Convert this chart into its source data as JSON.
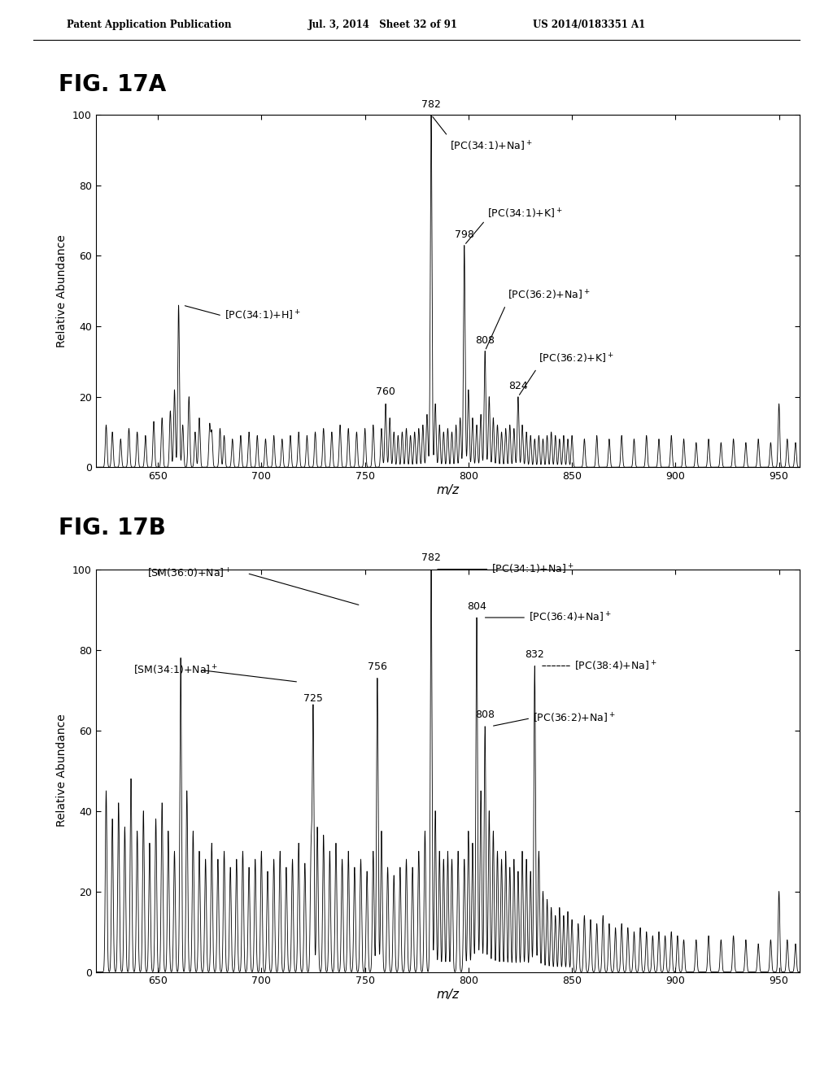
{
  "header_left": "Patent Application Publication",
  "header_mid": "Jul. 3, 2014   Sheet 32 of 91",
  "header_right": "US 2014/0183351 A1",
  "fig_a_label": "FIG. 17A",
  "fig_b_label": "FIG. 17B",
  "xlabel": "m/z",
  "ylabel": "Relative Abundance",
  "xlim": [
    620,
    960
  ],
  "ylim": [
    0,
    100
  ],
  "xticks": [
    650,
    700,
    750,
    800,
    850,
    900,
    950
  ],
  "yticks": [
    0,
    20,
    40,
    60,
    80,
    100
  ],
  "background_color": "#ffffff",
  "line_color": "#000000",
  "fig_a_peaks": [
    [
      660,
      46
    ],
    [
      665,
      20
    ],
    [
      670,
      14
    ],
    [
      675,
      12
    ],
    [
      680,
      11
    ],
    [
      625,
      12
    ],
    [
      628,
      10
    ],
    [
      632,
      8
    ],
    [
      636,
      11
    ],
    [
      640,
      10
    ],
    [
      644,
      9
    ],
    [
      648,
      13
    ],
    [
      652,
      14
    ],
    [
      656,
      16
    ],
    [
      658,
      22
    ],
    [
      662,
      12
    ],
    [
      668,
      10
    ],
    [
      676,
      10
    ],
    [
      682,
      9
    ],
    [
      686,
      8
    ],
    [
      690,
      9
    ],
    [
      694,
      10
    ],
    [
      698,
      9
    ],
    [
      702,
      8
    ],
    [
      706,
      9
    ],
    [
      710,
      8
    ],
    [
      714,
      9
    ],
    [
      718,
      10
    ],
    [
      722,
      9
    ],
    [
      726,
      10
    ],
    [
      730,
      11
    ],
    [
      734,
      10
    ],
    [
      738,
      12
    ],
    [
      742,
      11
    ],
    [
      746,
      10
    ],
    [
      750,
      11
    ],
    [
      754,
      12
    ],
    [
      758,
      11
    ],
    [
      760,
      18
    ],
    [
      762,
      14
    ],
    [
      764,
      10
    ],
    [
      766,
      9
    ],
    [
      768,
      10
    ],
    [
      770,
      11
    ],
    [
      772,
      9
    ],
    [
      774,
      10
    ],
    [
      776,
      11
    ],
    [
      778,
      12
    ],
    [
      780,
      15
    ],
    [
      782,
      100
    ],
    [
      784,
      18
    ],
    [
      786,
      12
    ],
    [
      788,
      10
    ],
    [
      790,
      11
    ],
    [
      792,
      10
    ],
    [
      794,
      12
    ],
    [
      796,
      14
    ],
    [
      798,
      63
    ],
    [
      800,
      22
    ],
    [
      802,
      14
    ],
    [
      804,
      12
    ],
    [
      806,
      15
    ],
    [
      808,
      33
    ],
    [
      810,
      20
    ],
    [
      812,
      14
    ],
    [
      814,
      12
    ],
    [
      816,
      10
    ],
    [
      818,
      11
    ],
    [
      820,
      12
    ],
    [
      822,
      11
    ],
    [
      824,
      20
    ],
    [
      826,
      12
    ],
    [
      828,
      10
    ],
    [
      830,
      9
    ],
    [
      832,
      8
    ],
    [
      834,
      9
    ],
    [
      836,
      8
    ],
    [
      838,
      9
    ],
    [
      840,
      10
    ],
    [
      842,
      9
    ],
    [
      844,
      8
    ],
    [
      846,
      9
    ],
    [
      848,
      8
    ],
    [
      850,
      9
    ],
    [
      856,
      8
    ],
    [
      862,
      9
    ],
    [
      868,
      8
    ],
    [
      874,
      9
    ],
    [
      880,
      8
    ],
    [
      886,
      9
    ],
    [
      892,
      8
    ],
    [
      898,
      9
    ],
    [
      904,
      8
    ],
    [
      910,
      7
    ],
    [
      916,
      8
    ],
    [
      922,
      7
    ],
    [
      928,
      8
    ],
    [
      934,
      7
    ],
    [
      940,
      8
    ],
    [
      946,
      7
    ],
    [
      950,
      18
    ],
    [
      954,
      8
    ],
    [
      958,
      7
    ]
  ],
  "fig_b_peaks": [
    [
      625,
      45
    ],
    [
      628,
      38
    ],
    [
      631,
      42
    ],
    [
      634,
      36
    ],
    [
      637,
      48
    ],
    [
      640,
      35
    ],
    [
      643,
      40
    ],
    [
      646,
      32
    ],
    [
      649,
      38
    ],
    [
      652,
      42
    ],
    [
      655,
      35
    ],
    [
      658,
      30
    ],
    [
      661,
      78
    ],
    [
      664,
      45
    ],
    [
      667,
      35
    ],
    [
      670,
      30
    ],
    [
      673,
      28
    ],
    [
      676,
      32
    ],
    [
      679,
      28
    ],
    [
      682,
      30
    ],
    [
      685,
      26
    ],
    [
      688,
      28
    ],
    [
      691,
      30
    ],
    [
      694,
      26
    ],
    [
      697,
      28
    ],
    [
      700,
      30
    ],
    [
      703,
      25
    ],
    [
      706,
      28
    ],
    [
      709,
      30
    ],
    [
      712,
      26
    ],
    [
      715,
      28
    ],
    [
      718,
      32
    ],
    [
      721,
      27
    ],
    [
      724,
      30
    ],
    [
      725,
      65
    ],
    [
      727,
      36
    ],
    [
      730,
      34
    ],
    [
      733,
      30
    ],
    [
      736,
      32
    ],
    [
      739,
      28
    ],
    [
      742,
      30
    ],
    [
      745,
      26
    ],
    [
      748,
      28
    ],
    [
      751,
      25
    ],
    [
      754,
      30
    ],
    [
      756,
      73
    ],
    [
      758,
      35
    ],
    [
      761,
      26
    ],
    [
      764,
      24
    ],
    [
      767,
      26
    ],
    [
      770,
      28
    ],
    [
      773,
      26
    ],
    [
      776,
      30
    ],
    [
      779,
      35
    ],
    [
      782,
      100
    ],
    [
      784,
      40
    ],
    [
      786,
      30
    ],
    [
      788,
      28
    ],
    [
      790,
      30
    ],
    [
      792,
      28
    ],
    [
      795,
      30
    ],
    [
      798,
      28
    ],
    [
      800,
      35
    ],
    [
      802,
      32
    ],
    [
      804,
      88
    ],
    [
      806,
      45
    ],
    [
      808,
      61
    ],
    [
      810,
      40
    ],
    [
      812,
      35
    ],
    [
      814,
      30
    ],
    [
      816,
      28
    ],
    [
      818,
      30
    ],
    [
      820,
      26
    ],
    [
      822,
      28
    ],
    [
      824,
      25
    ],
    [
      826,
      30
    ],
    [
      828,
      28
    ],
    [
      830,
      25
    ],
    [
      832,
      76
    ],
    [
      834,
      30
    ],
    [
      836,
      20
    ],
    [
      838,
      18
    ],
    [
      840,
      16
    ],
    [
      842,
      14
    ],
    [
      844,
      16
    ],
    [
      846,
      14
    ],
    [
      848,
      15
    ],
    [
      850,
      13
    ],
    [
      853,
      12
    ],
    [
      856,
      14
    ],
    [
      859,
      13
    ],
    [
      862,
      12
    ],
    [
      865,
      14
    ],
    [
      868,
      12
    ],
    [
      871,
      11
    ],
    [
      874,
      12
    ],
    [
      877,
      11
    ],
    [
      880,
      10
    ],
    [
      883,
      11
    ],
    [
      886,
      10
    ],
    [
      889,
      9
    ],
    [
      892,
      10
    ],
    [
      895,
      9
    ],
    [
      898,
      10
    ],
    [
      901,
      9
    ],
    [
      904,
      8
    ],
    [
      910,
      8
    ],
    [
      916,
      9
    ],
    [
      922,
      8
    ],
    [
      928,
      9
    ],
    [
      934,
      8
    ],
    [
      940,
      7
    ],
    [
      946,
      8
    ],
    [
      950,
      20
    ],
    [
      954,
      8
    ],
    [
      958,
      7
    ]
  ]
}
